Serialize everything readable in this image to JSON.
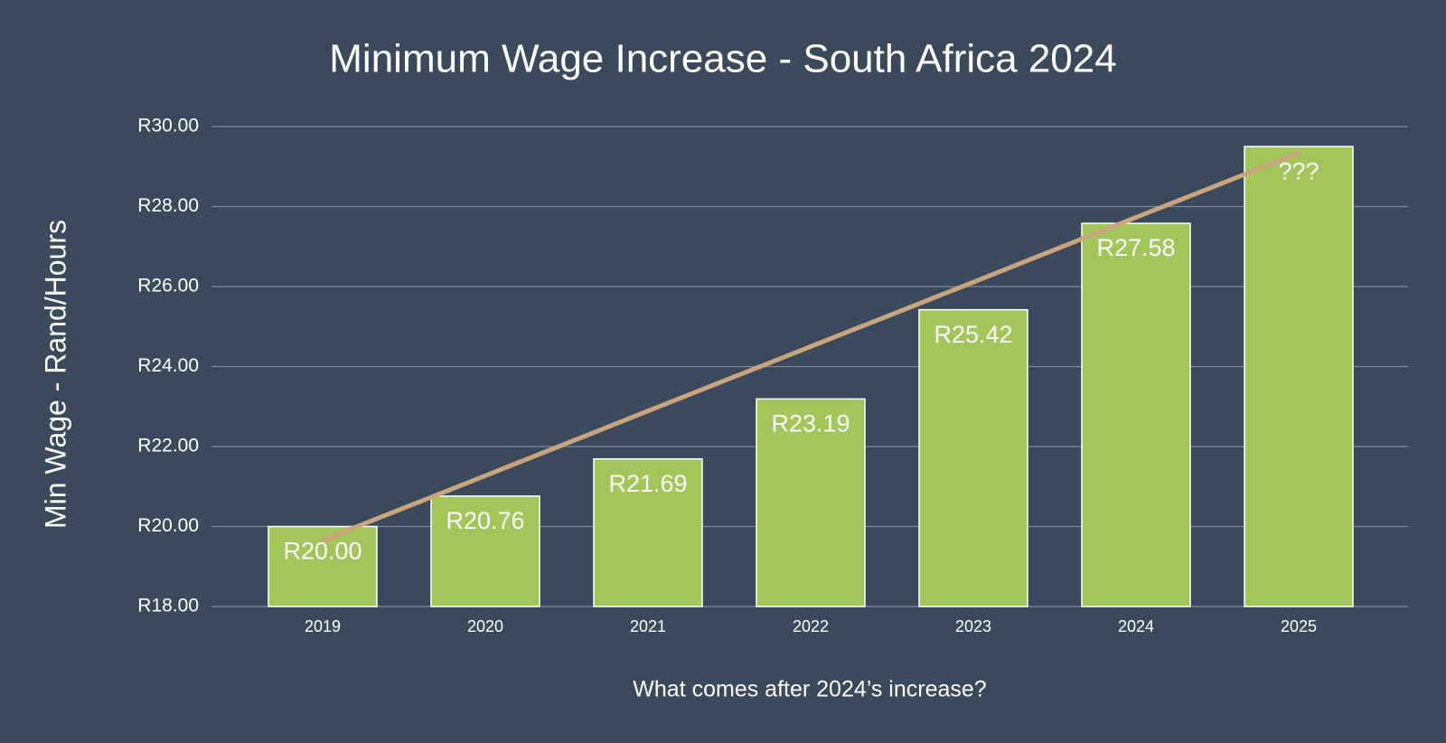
{
  "chart_data": {
    "type": "bar",
    "title": "Minimum Wage Increase - South Africa 2024",
    "y_label": "Min Wage - Rand/Hours",
    "x_label": "What comes after 2024’s increase?",
    "categories": [
      "2019",
      "2020",
      "2021",
      "2022",
      "2023",
      "2024",
      "2025"
    ],
    "values": [
      20.0,
      20.76,
      21.69,
      23.19,
      25.42,
      27.58,
      29.5
    ],
    "value_labels": [
      "R20.00",
      "R20.76",
      "R21.69",
      "R23.19",
      "R25.42",
      "R27.58",
      "???"
    ],
    "color": "#a3c65a",
    "ylim": [
      18,
      30
    ],
    "yticks": [
      {
        "value": 18,
        "label": "R18.00"
      },
      {
        "value": 20,
        "label": "R20.00"
      },
      {
        "value": 22,
        "label": "R22.00"
      },
      {
        "value": 24,
        "label": "R24.00"
      },
      {
        "value": 26,
        "label": "R26.00"
      },
      {
        "value": 28,
        "label": "R28.00"
      },
      {
        "value": 30,
        "label": "R30.00"
      }
    ],
    "grid": true,
    "trendline": {
      "color": "#c9a47e",
      "values": [
        19.66,
        21.27,
        22.89,
        24.5,
        26.11,
        27.73,
        29.34
      ]
    }
  }
}
